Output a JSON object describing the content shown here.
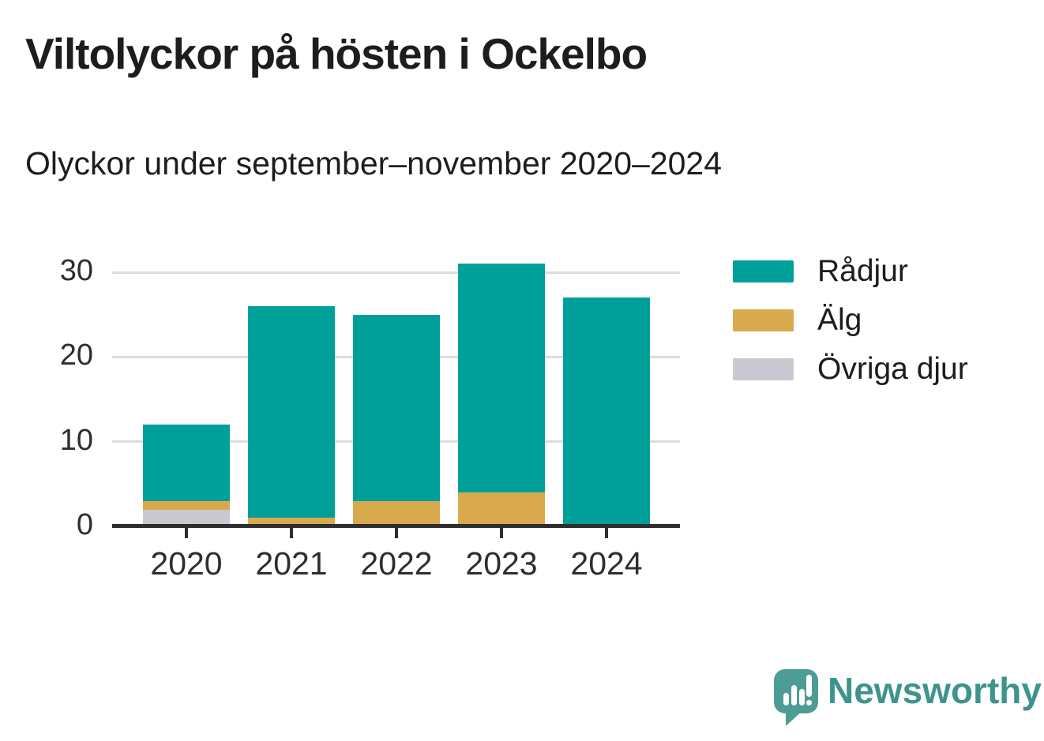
{
  "header": {
    "title": "Viltolyckor på hösten i Ockelbo",
    "subtitle": "Olyckor under september–november 2020–2024"
  },
  "chart_data": {
    "type": "bar",
    "stacked": true,
    "title": "Viltolyckor på hösten i Ockelbo",
    "subtitle": "Olyckor under september–november 2020–2024",
    "categories": [
      "2020",
      "2021",
      "2022",
      "2023",
      "2024"
    ],
    "series": [
      {
        "name": "Rådjur",
        "color": "#00a09a",
        "values": [
          9,
          25,
          22,
          27,
          27
        ]
      },
      {
        "name": "Älg",
        "color": "#d9a94e",
        "values": [
          1,
          1,
          3,
          4,
          0
        ]
      },
      {
        "name": "Övriga djur",
        "color": "#c9c9d1",
        "values": [
          2,
          0,
          0,
          0,
          0
        ]
      }
    ],
    "totals": [
      12,
      26,
      25,
      31,
      27
    ],
    "stack_order_bottom_to_top": [
      "Övriga djur",
      "Älg",
      "Rådjur"
    ],
    "xlabel": "",
    "ylabel": "",
    "yticks": [
      0,
      10,
      20,
      30
    ],
    "ylim": [
      0,
      31
    ],
    "grid": true,
    "gridline_color": "#dcdcdc",
    "axis_color": "#2e2e2e",
    "legend_position": "right"
  },
  "footer": {
    "brand": "Newsworthy",
    "brand_color": "#3e948d",
    "logo_icon": "speech-bubble-bar-chart-icon"
  }
}
